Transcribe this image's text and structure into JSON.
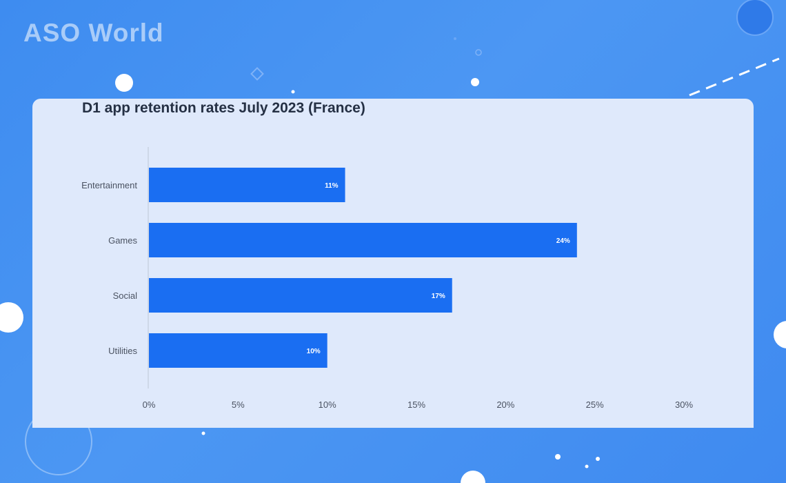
{
  "brand": {
    "logo_text": "ASO World"
  },
  "chart_data": {
    "type": "bar",
    "orientation": "horizontal",
    "title": "D1 app retention rates July 2023 (France)",
    "categories": [
      "Entertainment",
      "Games",
      "Social",
      "Utilities"
    ],
    "values": [
      11,
      24,
      17,
      10
    ],
    "data_labels": [
      "11%",
      "24%",
      "17%",
      "10%"
    ],
    "x_ticks": [
      "0%",
      "5%",
      "10%",
      "15%",
      "20%",
      "25%",
      "30%"
    ],
    "x_tick_values": [
      0,
      5,
      10,
      15,
      20,
      25,
      30
    ],
    "xlim": [
      0,
      30
    ],
    "xlabel": "",
    "ylabel": "",
    "grid": false,
    "legend": "none",
    "bar_color": "#1a6ef2"
  },
  "colors": {
    "background": "#4a93f2",
    "card": "#dfe9fb",
    "title_text": "#253044"
  }
}
